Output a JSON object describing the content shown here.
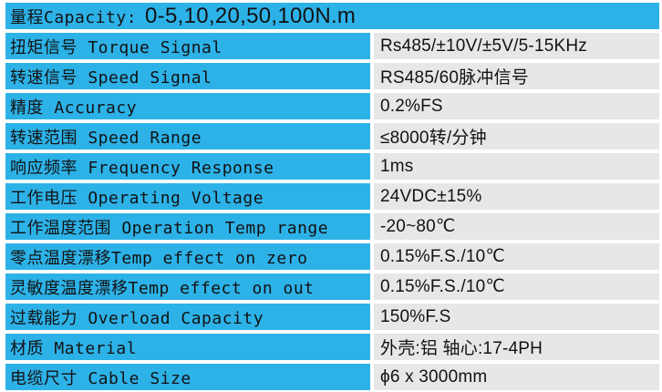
{
  "colors": {
    "accent_blue": "#2DB2E8",
    "cell_gray": "#E7E7E7",
    "text": "#121212",
    "background": "#FFFFFF"
  },
  "table": {
    "header": {
      "label": "量程Capacity:",
      "value": "0-5,10,20,50,100N.m"
    },
    "rows": [
      {
        "label": "扭矩信号 Torque Signal",
        "value": "Rs485/±10V/±5V/5-15KHz"
      },
      {
        "label": "转速信号 Speed Signal",
        "value": "RS485/60脉冲信号"
      },
      {
        "label": "精度 Accuracy",
        "value": "0.2%FS"
      },
      {
        "label": "转速范围 Speed Range",
        "value": "≤8000转/分钟"
      },
      {
        "label": "响应频率 Frequency Response",
        "value": "1ms"
      },
      {
        "label": "工作电压 Operating Voltage",
        "value": "24VDC±15%"
      },
      {
        "label": "工作温度范围 Operation Temp range",
        "value": "-20~80℃"
      },
      {
        "label": "零点温度漂移Temp effect on zero",
        "value": "0.15%F.S./10℃"
      },
      {
        "label": "灵敏度温度漂移Temp effect on out",
        "value": "0.15%F.S./10℃"
      },
      {
        "label": "过载能力 Overload Capacity",
        "value": "150%F.S"
      },
      {
        "label": "材质 Material",
        "value": "外壳:铝 轴心:17-4PH"
      },
      {
        "label": "电缆尺寸 Cable Size",
        "value": "ϕ6 x 3000mm"
      }
    ]
  }
}
